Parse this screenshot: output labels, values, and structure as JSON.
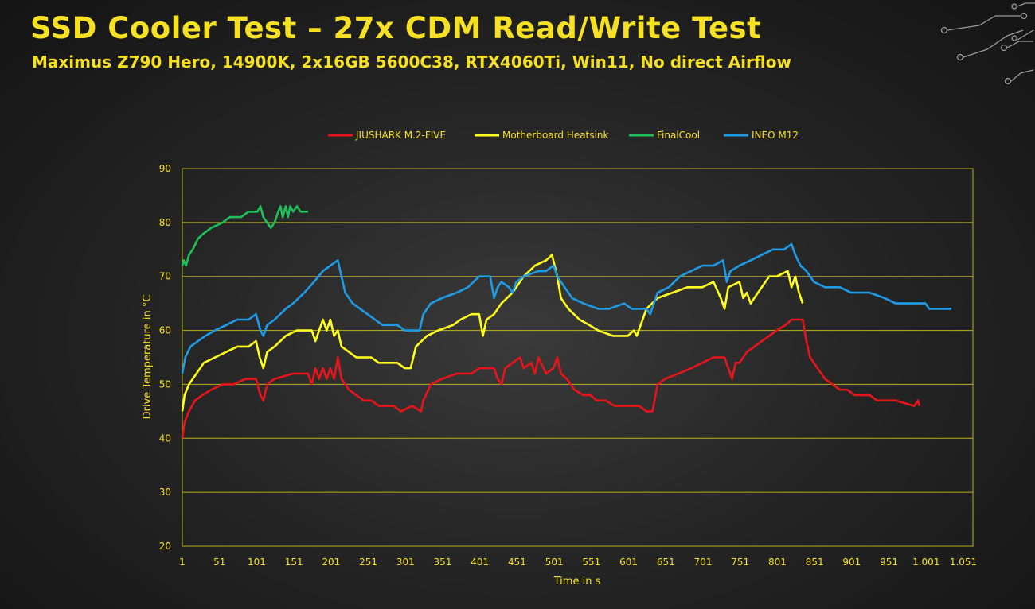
{
  "slide": {
    "title": "SSD Cooler Test – 27x CDM Read/Write Test",
    "subtitle": "Maximus Z790 Hero, 14900K, 2x16GB 5600C38, RTX4060Ti, Win11, No direct Airflow"
  },
  "colors": {
    "accent": "#f5e024",
    "grid": "#b8b020",
    "decor": "#9a9a9a"
  },
  "chart_data": {
    "type": "line",
    "xlabel": "Time in s",
    "ylabel": "Drive Temperature in °C",
    "xlim": [
      1,
      1051
    ],
    "ylim": [
      20,
      90
    ],
    "x_ticks": [
      "1",
      "51",
      "101",
      "151",
      "201",
      "251",
      "301",
      "351",
      "401",
      "451",
      "501",
      "551",
      "601",
      "651",
      "701",
      "751",
      "801",
      "851",
      "901",
      "951",
      "1.001",
      "1.051"
    ],
    "y_ticks": [
      "20",
      "30",
      "40",
      "50",
      "60",
      "70",
      "80",
      "90"
    ],
    "grid": "horizontal",
    "legend_position": "top",
    "series": [
      {
        "name": "JIUSHARK M.2-FIVE",
        "color": "#e8141b",
        "points": [
          [
            1,
            40
          ],
          [
            4,
            43
          ],
          [
            10,
            45
          ],
          [
            18,
            47
          ],
          [
            28,
            48
          ],
          [
            40,
            49
          ],
          [
            55,
            50
          ],
          [
            70,
            50
          ],
          [
            86,
            51
          ],
          [
            100,
            51
          ],
          [
            106,
            48
          ],
          [
            110,
            47
          ],
          [
            115,
            50
          ],
          [
            125,
            51
          ],
          [
            150,
            52
          ],
          [
            170,
            52
          ],
          [
            175,
            50
          ],
          [
            180,
            53
          ],
          [
            185,
            51
          ],
          [
            190,
            53
          ],
          [
            195,
            51
          ],
          [
            200,
            53
          ],
          [
            205,
            51
          ],
          [
            210,
            55
          ],
          [
            215,
            51
          ],
          [
            225,
            49
          ],
          [
            235,
            48
          ],
          [
            245,
            47
          ],
          [
            255,
            47
          ],
          [
            265,
            46
          ],
          [
            285,
            46
          ],
          [
            295,
            45
          ],
          [
            310,
            46
          ],
          [
            322,
            45
          ],
          [
            325,
            47
          ],
          [
            335,
            50
          ],
          [
            350,
            51
          ],
          [
            370,
            52
          ],
          [
            390,
            52
          ],
          [
            400,
            53
          ],
          [
            420,
            53
          ],
          [
            425,
            51
          ],
          [
            430,
            50
          ],
          [
            435,
            53
          ],
          [
            445,
            54
          ],
          [
            455,
            55
          ],
          [
            460,
            53
          ],
          [
            470,
            54
          ],
          [
            475,
            52
          ],
          [
            480,
            55
          ],
          [
            490,
            52
          ],
          [
            500,
            53
          ],
          [
            505,
            55
          ],
          [
            510,
            52
          ],
          [
            518,
            51
          ],
          [
            528,
            49
          ],
          [
            540,
            48
          ],
          [
            550,
            48
          ],
          [
            558,
            47
          ],
          [
            570,
            47
          ],
          [
            582,
            46
          ],
          [
            600,
            46
          ],
          [
            615,
            46
          ],
          [
            625,
            45
          ],
          [
            633,
            45
          ],
          [
            640,
            50
          ],
          [
            650,
            51
          ],
          [
            668,
            52
          ],
          [
            685,
            53
          ],
          [
            700,
            54
          ],
          [
            715,
            55
          ],
          [
            730,
            55
          ],
          [
            735,
            53
          ],
          [
            740,
            51
          ],
          [
            745,
            54
          ],
          [
            750,
            54
          ],
          [
            760,
            56
          ],
          [
            770,
            57
          ],
          [
            780,
            58
          ],
          [
            790,
            59
          ],
          [
            800,
            60
          ],
          [
            812,
            61
          ],
          [
            820,
            62
          ],
          [
            835,
            62
          ],
          [
            840,
            58
          ],
          [
            845,
            55
          ],
          [
            855,
            53
          ],
          [
            865,
            51
          ],
          [
            875,
            50
          ],
          [
            885,
            49
          ],
          [
            895,
            49
          ],
          [
            905,
            48
          ],
          [
            925,
            48
          ],
          [
            935,
            47
          ],
          [
            960,
            47
          ],
          [
            985,
            46
          ],
          [
            990,
            47
          ],
          [
            992,
            46
          ]
        ]
      },
      {
        "name": "Motherboard Heatsink",
        "color": "#ffff1e",
        "points": [
          [
            1,
            45
          ],
          [
            4,
            48
          ],
          [
            10,
            50
          ],
          [
            20,
            52
          ],
          [
            30,
            54
          ],
          [
            45,
            55
          ],
          [
            60,
            56
          ],
          [
            75,
            57
          ],
          [
            90,
            57
          ],
          [
            100,
            58
          ],
          [
            105,
            55
          ],
          [
            110,
            53
          ],
          [
            115,
            56
          ],
          [
            125,
            57
          ],
          [
            140,
            59
          ],
          [
            155,
            60
          ],
          [
            175,
            60
          ],
          [
            180,
            58
          ],
          [
            185,
            60
          ],
          [
            190,
            62
          ],
          [
            195,
            60
          ],
          [
            200,
            62
          ],
          [
            205,
            59
          ],
          [
            210,
            60
          ],
          [
            215,
            57
          ],
          [
            225,
            56
          ],
          [
            235,
            55
          ],
          [
            255,
            55
          ],
          [
            265,
            54
          ],
          [
            290,
            54
          ],
          [
            300,
            53
          ],
          [
            308,
            53
          ],
          [
            315,
            57
          ],
          [
            330,
            59
          ],
          [
            345,
            60
          ],
          [
            365,
            61
          ],
          [
            375,
            62
          ],
          [
            390,
            63
          ],
          [
            400,
            63
          ],
          [
            405,
            59
          ],
          [
            410,
            62
          ],
          [
            420,
            63
          ],
          [
            430,
            65
          ],
          [
            445,
            67
          ],
          [
            460,
            70
          ],
          [
            475,
            72
          ],
          [
            490,
            73
          ],
          [
            498,
            74
          ],
          [
            505,
            70
          ],
          [
            510,
            66
          ],
          [
            520,
            64
          ],
          [
            535,
            62
          ],
          [
            548,
            61
          ],
          [
            560,
            60
          ],
          [
            580,
            59
          ],
          [
            600,
            59
          ],
          [
            608,
            60
          ],
          [
            612,
            59
          ],
          [
            625,
            64
          ],
          [
            640,
            66
          ],
          [
            660,
            67
          ],
          [
            680,
            68
          ],
          [
            700,
            68
          ],
          [
            715,
            69
          ],
          [
            725,
            66
          ],
          [
            730,
            64
          ],
          [
            735,
            68
          ],
          [
            750,
            69
          ],
          [
            755,
            66
          ],
          [
            760,
            67
          ],
          [
            765,
            65
          ],
          [
            780,
            68
          ],
          [
            790,
            70
          ],
          [
            800,
            70
          ],
          [
            815,
            71
          ],
          [
            820,
            68
          ],
          [
            825,
            70
          ],
          [
            830,
            67
          ],
          [
            835,
            65
          ]
        ]
      },
      {
        "name": "FinalCool",
        "color": "#1fc05a",
        "points": [
          [
            1,
            72
          ],
          [
            3,
            73
          ],
          [
            6,
            72
          ],
          [
            10,
            74
          ],
          [
            15,
            75
          ],
          [
            22,
            77
          ],
          [
            30,
            78
          ],
          [
            40,
            79
          ],
          [
            55,
            80
          ],
          [
            65,
            81
          ],
          [
            80,
            81
          ],
          [
            90,
            82
          ],
          [
            102,
            82
          ],
          [
            106,
            83
          ],
          [
            110,
            81
          ],
          [
            115,
            80
          ],
          [
            120,
            79
          ],
          [
            125,
            80
          ],
          [
            130,
            82
          ],
          [
            133,
            83
          ],
          [
            136,
            81
          ],
          [
            140,
            83
          ],
          [
            143,
            81
          ],
          [
            146,
            83
          ],
          [
            150,
            82
          ],
          [
            155,
            83
          ],
          [
            160,
            82
          ],
          [
            170,
            82
          ]
        ]
      },
      {
        "name": "INEO M12",
        "color": "#1e9be6",
        "points": [
          [
            1,
            52
          ],
          [
            5,
            55
          ],
          [
            12,
            57
          ],
          [
            22,
            58
          ],
          [
            32,
            59
          ],
          [
            45,
            60
          ],
          [
            60,
            61
          ],
          [
            75,
            62
          ],
          [
            90,
            62
          ],
          [
            100,
            63
          ],
          [
            106,
            60
          ],
          [
            110,
            59
          ],
          [
            115,
            61
          ],
          [
            125,
            62
          ],
          [
            140,
            64
          ],
          [
            150,
            65
          ],
          [
            165,
            67
          ],
          [
            178,
            69
          ],
          [
            190,
            71
          ],
          [
            200,
            72
          ],
          [
            210,
            73
          ],
          [
            215,
            70
          ],
          [
            220,
            67
          ],
          [
            230,
            65
          ],
          [
            240,
            64
          ],
          [
            250,
            63
          ],
          [
            260,
            62
          ],
          [
            270,
            61
          ],
          [
            290,
            61
          ],
          [
            300,
            60
          ],
          [
            320,
            60
          ],
          [
            325,
            63
          ],
          [
            335,
            65
          ],
          [
            350,
            66
          ],
          [
            370,
            67
          ],
          [
            385,
            68
          ],
          [
            400,
            70
          ],
          [
            415,
            70
          ],
          [
            420,
            66
          ],
          [
            425,
            68
          ],
          [
            430,
            69
          ],
          [
            440,
            68
          ],
          [
            445,
            67
          ],
          [
            450,
            69
          ],
          [
            460,
            70
          ],
          [
            480,
            71
          ],
          [
            490,
            71
          ],
          [
            500,
            72
          ],
          [
            505,
            70
          ],
          [
            515,
            68
          ],
          [
            525,
            66
          ],
          [
            540,
            65
          ],
          [
            560,
            64
          ],
          [
            575,
            64
          ],
          [
            595,
            65
          ],
          [
            605,
            64
          ],
          [
            625,
            64
          ],
          [
            630,
            63
          ],
          [
            640,
            67
          ],
          [
            655,
            68
          ],
          [
            670,
            70
          ],
          [
            685,
            71
          ],
          [
            700,
            72
          ],
          [
            715,
            72
          ],
          [
            728,
            73
          ],
          [
            733,
            69
          ],
          [
            738,
            71
          ],
          [
            750,
            72
          ],
          [
            765,
            73
          ],
          [
            780,
            74
          ],
          [
            795,
            75
          ],
          [
            810,
            75
          ],
          [
            820,
            76
          ],
          [
            825,
            74
          ],
          [
            832,
            72
          ],
          [
            840,
            71
          ],
          [
            850,
            69
          ],
          [
            865,
            68
          ],
          [
            885,
            68
          ],
          [
            900,
            67
          ],
          [
            925,
            67
          ],
          [
            945,
            66
          ],
          [
            960,
            65
          ],
          [
            985,
            65
          ],
          [
            1000,
            65
          ],
          [
            1005,
            64
          ],
          [
            1025,
            64
          ],
          [
            1035,
            64
          ]
        ]
      }
    ]
  }
}
